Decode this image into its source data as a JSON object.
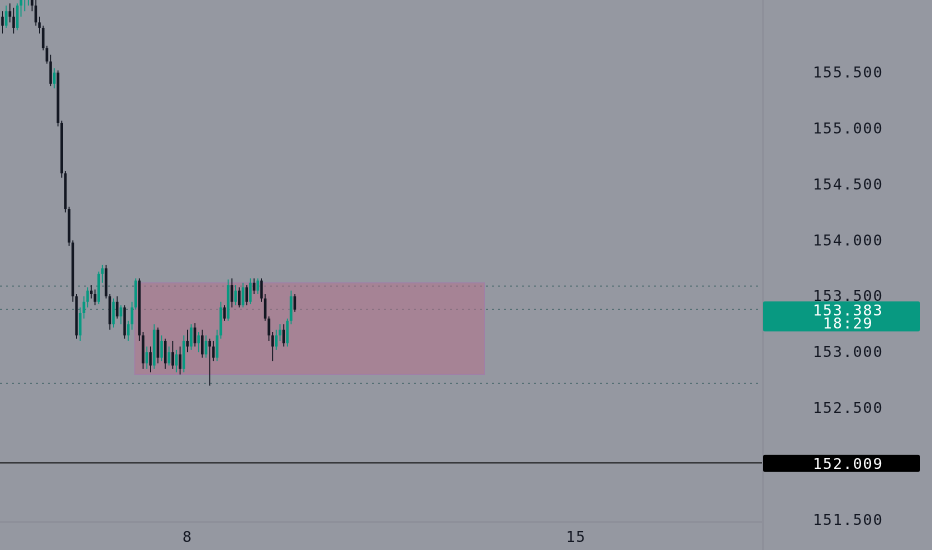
{
  "chart_data": {
    "type": "candlestick",
    "colors": {
      "background": "#9598a1",
      "up": "#089981",
      "down": "#131722",
      "grid_dotted": "#4d6b6f",
      "box_fill": "#b5728c",
      "box_edge": "#a07fa7",
      "axis_line": "#868993",
      "text": "#131722"
    },
    "y_axis": {
      "ylim": [
        151.23,
        156.15
      ],
      "ticks": [
        {
          "value": 155.5,
          "label": "155.500"
        },
        {
          "value": 155.0,
          "label": "155.000"
        },
        {
          "value": 154.5,
          "label": "154.500"
        },
        {
          "value": 154.0,
          "label": "154.000"
        },
        {
          "value": 153.5,
          "label": "153.500"
        },
        {
          "value": 153.0,
          "label": "153.000"
        },
        {
          "value": 152.5,
          "label": "152.500"
        },
        {
          "value": 151.5,
          "label": "151.500"
        }
      ]
    },
    "x_axis": {
      "ticks": [
        {
          "index": 50,
          "label": "8"
        },
        {
          "index": 155,
          "label": "15"
        }
      ]
    },
    "current_price": {
      "value": 153.383,
      "label": "153.383",
      "countdown": "18:29",
      "color": "#089981"
    },
    "horizontal_level": {
      "value": 152.009,
      "label": "152.009",
      "color": "#000000"
    },
    "dotted_levels": [
      153.59,
      153.383,
      152.72
    ],
    "range_box": {
      "start_index": 36,
      "end_index": 130,
      "top": 153.62,
      "bottom": 152.8
    },
    "candles": [
      [
        156.0,
        156.05,
        155.85,
        155.92
      ],
      [
        155.92,
        156.1,
        155.9,
        156.05
      ],
      [
        156.05,
        156.12,
        155.95,
        156.0
      ],
      [
        156.0,
        156.08,
        155.85,
        155.9
      ],
      [
        155.9,
        156.12,
        155.88,
        156.1
      ],
      [
        156.1,
        156.2,
        156.0,
        156.15
      ],
      [
        156.15,
        156.22,
        156.05,
        156.18
      ],
      [
        156.18,
        156.25,
        156.1,
        156.2
      ],
      [
        156.2,
        156.25,
        156.05,
        156.1
      ],
      [
        156.1,
        156.15,
        155.92,
        155.95
      ],
      [
        155.95,
        156.0,
        155.85,
        155.9
      ],
      [
        155.9,
        155.92,
        155.7,
        155.72
      ],
      [
        155.72,
        155.74,
        155.58,
        155.6
      ],
      [
        155.6,
        155.66,
        155.38,
        155.4
      ],
      [
        155.4,
        155.54,
        155.36,
        155.5
      ],
      [
        155.5,
        155.52,
        155.02,
        155.05
      ],
      [
        155.05,
        155.07,
        154.56,
        154.6
      ],
      [
        154.6,
        154.62,
        154.25,
        154.28
      ],
      [
        154.28,
        154.3,
        153.95,
        153.98
      ],
      [
        153.98,
        154.0,
        153.45,
        153.5
      ],
      [
        153.5,
        153.52,
        153.12,
        153.15
      ],
      [
        153.15,
        153.4,
        153.1,
        153.35
      ],
      [
        153.35,
        153.5,
        153.3,
        153.45
      ],
      [
        153.45,
        153.58,
        153.4,
        153.55
      ],
      [
        153.55,
        153.6,
        153.48,
        153.52
      ],
      [
        153.52,
        153.56,
        153.42,
        153.45
      ],
      [
        153.45,
        153.72,
        153.43,
        153.7
      ],
      [
        153.7,
        153.78,
        153.62,
        153.75
      ],
      [
        153.75,
        153.78,
        153.48,
        153.5
      ],
      [
        153.5,
        153.52,
        153.2,
        153.25
      ],
      [
        153.25,
        153.48,
        153.22,
        153.45
      ],
      [
        153.45,
        153.5,
        153.3,
        153.32
      ],
      [
        153.32,
        153.42,
        153.25,
        153.4
      ],
      [
        153.4,
        153.42,
        153.12,
        153.15
      ],
      [
        153.15,
        153.28,
        153.1,
        153.25
      ],
      [
        153.25,
        153.45,
        153.2,
        153.4
      ],
      [
        153.4,
        153.66,
        153.38,
        153.64
      ],
      [
        153.64,
        153.66,
        153.1,
        153.15
      ],
      [
        153.15,
        153.18,
        152.85,
        152.9
      ],
      [
        152.9,
        153.05,
        152.85,
        153.0
      ],
      [
        153.0,
        153.05,
        152.82,
        152.88
      ],
      [
        152.88,
        153.25,
        152.85,
        153.2
      ],
      [
        153.2,
        153.22,
        152.9,
        152.95
      ],
      [
        152.95,
        153.15,
        152.92,
        153.1
      ],
      [
        153.1,
        153.12,
        152.85,
        152.9
      ],
      [
        152.9,
        153.05,
        152.88,
        153.0
      ],
      [
        153.0,
        153.1,
        152.85,
        152.88
      ],
      [
        152.88,
        153.02,
        152.82,
        152.98
      ],
      [
        152.98,
        153.05,
        152.8,
        152.85
      ],
      [
        152.85,
        153.15,
        152.82,
        153.1
      ],
      [
        153.1,
        153.2,
        153.0,
        153.05
      ],
      [
        153.05,
        153.25,
        153.02,
        153.22
      ],
      [
        153.22,
        153.26,
        153.05,
        153.08
      ],
      [
        153.08,
        153.18,
        153.0,
        153.15
      ],
      [
        153.15,
        153.2,
        152.95,
        152.98
      ],
      [
        152.98,
        153.15,
        152.95,
        153.1
      ],
      [
        153.1,
        153.12,
        152.7,
        153.05
      ],
      [
        153.05,
        153.1,
        152.92,
        152.95
      ],
      [
        152.95,
        153.2,
        152.92,
        153.15
      ],
      [
        153.15,
        153.45,
        153.12,
        153.4
      ],
      [
        153.4,
        153.42,
        153.28,
        153.3
      ],
      [
        153.3,
        153.65,
        153.28,
        153.6
      ],
      [
        153.6,
        153.66,
        153.4,
        153.45
      ],
      [
        153.45,
        153.6,
        153.42,
        153.55
      ],
      [
        153.55,
        153.58,
        153.4,
        153.42
      ],
      [
        153.42,
        153.62,
        153.4,
        153.58
      ],
      [
        153.58,
        153.6,
        153.42,
        153.45
      ],
      [
        153.45,
        153.66,
        153.43,
        153.62
      ],
      [
        153.62,
        153.66,
        153.52,
        153.55
      ],
      [
        153.55,
        153.66,
        153.52,
        153.64
      ],
      [
        153.64,
        153.66,
        153.45,
        153.48
      ],
      [
        153.48,
        153.52,
        153.28,
        153.3
      ],
      [
        153.3,
        153.32,
        153.1,
        153.15
      ],
      [
        153.15,
        153.18,
        152.92,
        153.05
      ],
      [
        153.05,
        153.2,
        153.02,
        153.15
      ],
      [
        153.15,
        153.25,
        153.1,
        153.2
      ],
      [
        153.2,
        153.25,
        153.05,
        153.08
      ],
      [
        153.08,
        153.3,
        153.05,
        153.28
      ],
      [
        153.28,
        153.55,
        153.25,
        153.5
      ],
      [
        153.5,
        153.52,
        153.36,
        153.38
      ]
    ]
  }
}
